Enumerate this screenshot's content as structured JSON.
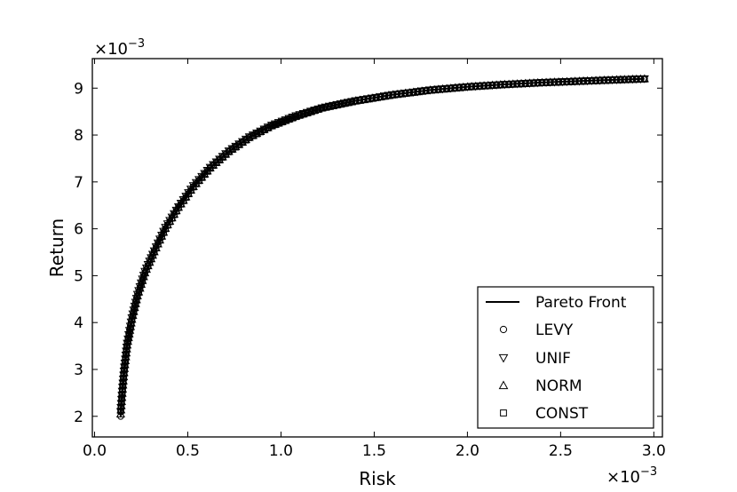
{
  "chart_data": {
    "type": "scatter",
    "xlabel": "Risk",
    "ylabel": "Return",
    "x_multiplier_label": "×10",
    "x_multiplier_exp": "−3",
    "y_multiplier_label": "×10",
    "y_multiplier_exp": "−3",
    "xlim": [
      -1.2e-05,
      0.003046
    ],
    "ylim": [
      0.00156,
      0.00963
    ],
    "x_ticks": [
      {
        "value": 0.0,
        "label": "0.0"
      },
      {
        "value": 0.0005,
        "label": "0.5"
      },
      {
        "value": 0.001,
        "label": "1.0"
      },
      {
        "value": 0.0015,
        "label": "1.5"
      },
      {
        "value": 0.002,
        "label": "2.0"
      },
      {
        "value": 0.0025,
        "label": "2.5"
      },
      {
        "value": 0.003,
        "label": "3.0"
      }
    ],
    "y_ticks": [
      {
        "value": 0.002,
        "label": "2"
      },
      {
        "value": 0.003,
        "label": "3"
      },
      {
        "value": 0.004,
        "label": "4"
      },
      {
        "value": 0.005,
        "label": "5"
      },
      {
        "value": 0.006,
        "label": "6"
      },
      {
        "value": 0.007,
        "label": "7"
      },
      {
        "value": 0.008,
        "label": "8"
      },
      {
        "value": 0.009,
        "label": "9"
      }
    ],
    "grid": false,
    "legend_position": "bottom-right",
    "legend": [
      {
        "label": "Pareto Front",
        "marker": "line"
      },
      {
        "label": "LEVY",
        "marker": "circle"
      },
      {
        "label": "UNIF",
        "marker": "triangle-down"
      },
      {
        "label": "NORM",
        "marker": "triangle-up"
      },
      {
        "label": "CONST",
        "marker": "square"
      }
    ],
    "series": [
      {
        "name": "Pareto Front",
        "kind": "line",
        "x": [
          0.00014,
          0.00015,
          0.00016,
          0.000175,
          0.0002,
          0.00023,
          0.00027,
          0.00032,
          0.00038,
          0.00045,
          0.00053,
          0.00062,
          0.00072,
          0.00083,
          0.00095,
          0.00108,
          0.00122,
          0.0014,
          0.0016,
          0.0018,
          0.002,
          0.0022,
          0.0024,
          0.0026,
          0.0028,
          0.00295
        ],
        "y": [
          0.002,
          0.00255,
          0.003,
          0.0035,
          0.00405,
          0.00455,
          0.00505,
          0.0055,
          0.006,
          0.00645,
          0.0069,
          0.0073,
          0.00765,
          0.00795,
          0.0082,
          0.0084,
          0.00858,
          0.00873,
          0.00886,
          0.00896,
          0.00903,
          0.00908,
          0.00912,
          0.00915,
          0.00918,
          0.0092
        ]
      },
      {
        "name": "LEVY",
        "marker": "circle",
        "x": [
          0.00014,
          0.00015,
          0.00016,
          0.000175,
          0.0002,
          0.00023,
          0.00027,
          0.00032,
          0.00038,
          0.00045,
          0.00053,
          0.00062,
          0.00072,
          0.00083,
          0.00095,
          0.00108,
          0.00122,
          0.0014,
          0.0016,
          0.0018,
          0.002,
          0.0022,
          0.0024,
          0.0026,
          0.0028,
          0.00295
        ],
        "y": [
          0.002,
          0.00255,
          0.003,
          0.0035,
          0.00405,
          0.00455,
          0.00505,
          0.0055,
          0.006,
          0.00645,
          0.0069,
          0.0073,
          0.00765,
          0.00795,
          0.0082,
          0.0084,
          0.00858,
          0.00873,
          0.00886,
          0.00896,
          0.00903,
          0.00908,
          0.00912,
          0.00915,
          0.00918,
          0.0092
        ]
      },
      {
        "name": "UNIF",
        "marker": "triangle-down",
        "x": [
          0.00014,
          0.00015,
          0.00016,
          0.000175,
          0.0002,
          0.00023,
          0.00027,
          0.00032,
          0.00038,
          0.00045,
          0.00053,
          0.00062,
          0.00072,
          0.00083,
          0.00095,
          0.00108,
          0.00122,
          0.0014,
          0.0016,
          0.0018,
          0.002,
          0.0022,
          0.0024,
          0.0026,
          0.0028,
          0.00295
        ],
        "y": [
          0.0021,
          0.00262,
          0.00305,
          0.00356,
          0.0041,
          0.0046,
          0.00509,
          0.00553,
          0.00603,
          0.00647,
          0.00692,
          0.00731,
          0.00766,
          0.00796,
          0.00821,
          0.00841,
          0.00858,
          0.00873,
          0.00886,
          0.00896,
          0.00903,
          0.00908,
          0.00912,
          0.00915,
          0.00918,
          0.0092
        ]
      },
      {
        "name": "NORM",
        "marker": "triangle-up",
        "x": [
          0.00014,
          0.00015,
          0.00016,
          0.000175,
          0.0002,
          0.00023,
          0.00027,
          0.00032,
          0.00038,
          0.00045,
          0.00053,
          0.00062,
          0.00072,
          0.00083,
          0.00095,
          0.00108,
          0.00122,
          0.0014,
          0.0016,
          0.0018,
          0.002,
          0.0022,
          0.0024,
          0.0026,
          0.0028,
          0.00295
        ],
        "y": [
          0.00205,
          0.00258,
          0.00302,
          0.00352,
          0.00407,
          0.00457,
          0.00506,
          0.00551,
          0.00601,
          0.00646,
          0.0069,
          0.0073,
          0.00765,
          0.00795,
          0.0082,
          0.0084,
          0.00858,
          0.00873,
          0.00886,
          0.00896,
          0.00903,
          0.00908,
          0.00912,
          0.00915,
          0.00918,
          0.0092
        ]
      },
      {
        "name": "CONST",
        "marker": "square",
        "x": [
          0.00014,
          0.00015,
          0.00016,
          0.000175,
          0.0002,
          0.00023,
          0.00027,
          0.00032,
          0.00038,
          0.00045,
          0.00053,
          0.00062,
          0.00072,
          0.00083,
          0.00095,
          0.00108,
          0.00122,
          0.0014,
          0.0016,
          0.0018,
          0.002,
          0.0022,
          0.0024,
          0.0026,
          0.0028,
          0.00295
        ],
        "y": [
          0.00212,
          0.0026,
          0.00303,
          0.00353,
          0.00406,
          0.00456,
          0.00506,
          0.00551,
          0.006,
          0.00645,
          0.00689,
          0.00729,
          0.00764,
          0.00794,
          0.00819,
          0.00839,
          0.00857,
          0.00872,
          0.00885,
          0.00895,
          0.00902,
          0.00907,
          0.00911,
          0.00914,
          0.00917,
          0.00919
        ]
      }
    ]
  }
}
